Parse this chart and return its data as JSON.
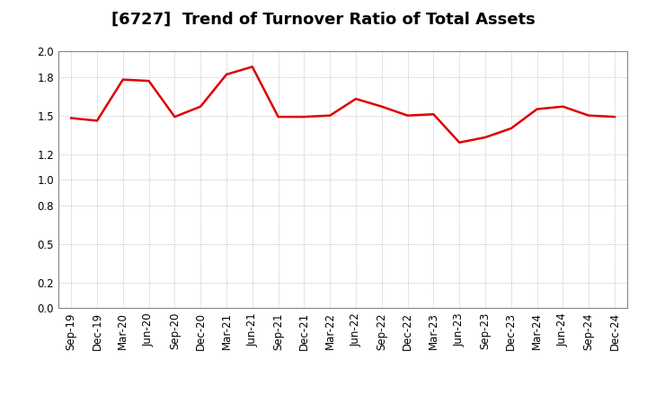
{
  "title": "[6727]  Trend of Turnover Ratio of Total Assets",
  "x_labels": [
    "Sep-19",
    "Dec-19",
    "Mar-20",
    "Jun-20",
    "Sep-20",
    "Dec-20",
    "Mar-21",
    "Jun-21",
    "Sep-21",
    "Dec-21",
    "Mar-22",
    "Jun-22",
    "Sep-22",
    "Dec-22",
    "Mar-23",
    "Jun-23",
    "Sep-23",
    "Dec-23",
    "Mar-24",
    "Jun-24",
    "Sep-24",
    "Dec-24"
  ],
  "y_values": [
    1.48,
    1.46,
    1.78,
    1.77,
    1.49,
    1.57,
    1.82,
    1.88,
    1.49,
    1.49,
    1.5,
    1.63,
    1.57,
    1.5,
    1.51,
    1.29,
    1.33,
    1.4,
    1.55,
    1.57,
    1.5,
    1.49
  ],
  "line_color": "#dd0000",
  "line_width": 1.8,
  "ylim": [
    0.0,
    2.0
  ],
  "yticks": [
    0.0,
    0.2,
    0.5,
    0.8,
    1.0,
    1.2,
    1.5,
    1.8,
    2.0
  ],
  "grid_color": "#aaaaaa",
  "bg_color": "#ffffff",
  "title_fontsize": 13,
  "tick_fontsize": 8.5
}
